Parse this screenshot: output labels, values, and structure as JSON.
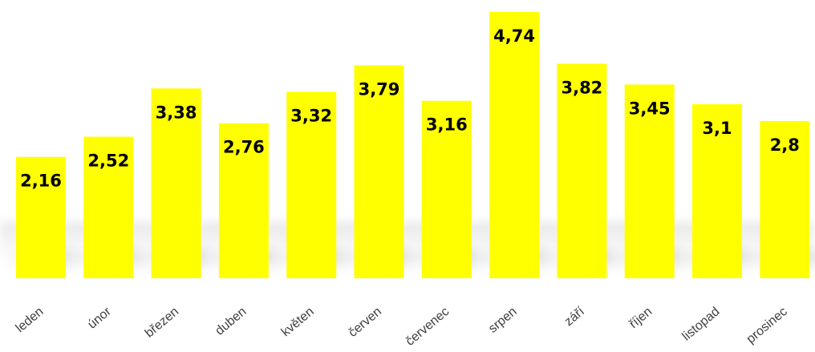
{
  "chart_data": {
    "type": "bar",
    "categories": [
      "leden",
      "únor",
      "březen",
      "duben",
      "květen",
      "červen",
      "červenec",
      "srpen",
      "září",
      "říjen",
      "listopad",
      "prosinec"
    ],
    "values": [
      2.16,
      2.52,
      3.38,
      2.76,
      3.32,
      3.79,
      3.16,
      4.74,
      3.82,
      3.45,
      3.1,
      2.8
    ],
    "value_labels": [
      "2,16",
      "2,52",
      "3,38",
      "2,76",
      "3,32",
      "3,79",
      "3,16",
      "4,74",
      "3,82",
      "3,45",
      "3,1",
      "2,8"
    ],
    "title": "",
    "xlabel": "",
    "ylabel": "",
    "ylim": [
      0,
      4.74
    ],
    "grid": false,
    "legend": "none",
    "bar_color": "#FFFF00",
    "label_color": "#000000",
    "tick_color": "#404040"
  }
}
